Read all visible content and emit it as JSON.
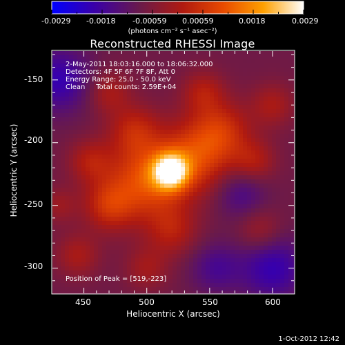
{
  "plot": {
    "title": "Reconstructed RHESSI Image",
    "info_lines": [
      "2-May-2011 18:03:16.000 to 18:06:32.000",
      "Detectors: 4F 5F 6F 7F 8F, Att 0",
      "Energy Range: 25.0 - 50.0 keV",
      "Clean     Total counts: 2.59E+04"
    ],
    "peak_label": "Position of Peak = [519,-223]",
    "xlabel": "Heliocentric X (arcsec)",
    "ylabel": "Heliocentric Y (arcsec)",
    "x_ticks": [
      "450",
      "500",
      "550",
      "600"
    ],
    "y_ticks": [
      "-150",
      "-200",
      "-250",
      "-300"
    ],
    "timestamp": "1-Oct-2012 12:42"
  },
  "colorbar": {
    "tick_labels": [
      "-0.0029",
      "-0.0018",
      "-0.00059",
      "0.00059",
      "0.0018",
      "0.0029"
    ],
    "units_label": "(photons cm⁻² s⁻¹ asec⁻²)",
    "colors": [
      "#0000ff",
      "#3a00a8",
      "#6a1a4a",
      "#b01a10",
      "#e84a00",
      "#ffa000",
      "#ffffff"
    ]
  },
  "chart_data": {
    "type": "heatmap",
    "title": "Reconstructed RHESSI Image",
    "xlabel": "Heliocentric X (arcsec)",
    "ylabel": "Heliocentric Y (arcsec)",
    "xlim": [
      425,
      617
    ],
    "ylim": [
      -320,
      -127
    ],
    "zlim": [
      -0.0029,
      0.0029
    ],
    "peak": [
      519,
      -223
    ],
    "sources": [
      {
        "x": 519,
        "y": -223,
        "amp": 0.0029,
        "sigma": 10
      },
      {
        "x": 500,
        "y": -230,
        "amp": 0.0018,
        "sigma": 22
      },
      {
        "x": 540,
        "y": -210,
        "amp": 0.0015,
        "sigma": 20
      },
      {
        "x": 470,
        "y": -250,
        "amp": 0.0012,
        "sigma": 14
      },
      {
        "x": 560,
        "y": -190,
        "amp": 0.0011,
        "sigma": 16
      },
      {
        "x": 490,
        "y": -190,
        "amp": 0.001,
        "sigma": 14
      },
      {
        "x": 455,
        "y": -215,
        "amp": 0.0009,
        "sigma": 12
      },
      {
        "x": 585,
        "y": -215,
        "amp": 0.0009,
        "sigma": 12
      },
      {
        "x": 520,
        "y": -270,
        "amp": 0.0009,
        "sigma": 14
      },
      {
        "x": 545,
        "y": -160,
        "amp": 0.0009,
        "sigma": 12
      },
      {
        "x": 470,
        "y": -160,
        "amp": 0.0008,
        "sigma": 12
      },
      {
        "x": 600,
        "y": -170,
        "amp": 0.0008,
        "sigma": 12
      },
      {
        "x": 445,
        "y": -290,
        "amp": 0.0008,
        "sigma": 12
      },
      {
        "x": 590,
        "y": -270,
        "amp": 0.0007,
        "sigma": 12
      },
      {
        "x": 500,
        "y": -300,
        "amp": 0.0007,
        "sigma": 12
      },
      {
        "x": 430,
        "y": -250,
        "amp": 0.0006,
        "sigma": 10
      },
      {
        "x": 430,
        "y": -150,
        "amp": -0.0012,
        "sigma": 18
      },
      {
        "x": 600,
        "y": -300,
        "amp": -0.0012,
        "sigma": 18
      },
      {
        "x": 575,
        "y": -240,
        "amp": -0.0008,
        "sigma": 14
      },
      {
        "x": 555,
        "y": -300,
        "amp": -0.0008,
        "sigma": 14
      }
    ]
  }
}
